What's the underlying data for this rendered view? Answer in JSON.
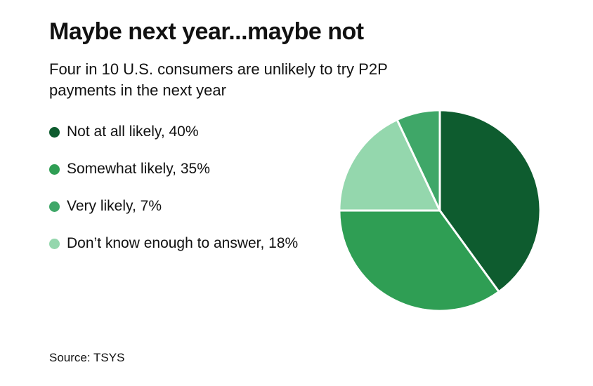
{
  "chart_data": {
    "type": "pie",
    "title": "Maybe next year...maybe not",
    "subtitle": "Four in 10 U.S. consumers are unlikely to try P2P payments in the next year",
    "subtitle_lines": [
      "Four in 10 U.S. consumers are unlikely to try P2P",
      "payments in the next year"
    ],
    "source": "Source: TSYS",
    "legend_position": "left",
    "start_angle_deg": 0,
    "direction": "clockwise",
    "segments": [
      {
        "label": "Not at all likely",
        "value": 40,
        "color": "#0e5c2f",
        "legend_label": "Not at all likely, 40%"
      },
      {
        "label": "Somewhat likely",
        "value": 35,
        "color": "#2f9e54",
        "legend_label": "Somewhat likely, 35%"
      },
      {
        "label": "Very likely",
        "value": 7,
        "color": "#3fa768",
        "legend_label": "Very likely, 7%"
      },
      {
        "label": "Don’t know enough to answer",
        "value": 18,
        "color": "#94d7ad",
        "legend_label": "Don’t know enough to answer, 18%"
      }
    ],
    "draw_order": [
      0,
      1,
      3,
      2
    ]
  }
}
